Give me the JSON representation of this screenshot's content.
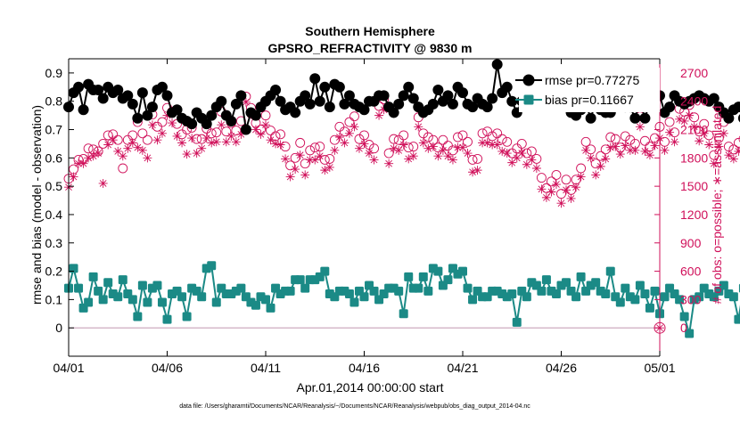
{
  "chart_data": {
    "type": "line",
    "title": "Southern Hemisphere",
    "subtitle": "GPSRO_REFRACTIVITY @ 9830 m",
    "xlabel": "Apr.01,2014 00:00:00 start",
    "ylabel": "rmse and bias (model - observation)",
    "y2label": "# of obs: o=possible; ∗=assimilated",
    "footnote": "data file: /Users/gharamti/Documents/NCAR/Reanalysis/~/Documents/NCAR/Reanalysis/webpub/obs_diag_output_2014-04.nc",
    "xlim": [
      0,
      30
    ],
    "ylim": [
      -0.1,
      0.95
    ],
    "y2lim": [
      -300,
      2850
    ],
    "x_ticks": [
      0,
      5,
      10,
      15,
      20,
      25,
      30
    ],
    "x_tick_labels": [
      "04/01",
      "04/06",
      "04/11",
      "04/16",
      "04/21",
      "04/26",
      "05/01"
    ],
    "y_ticks": [
      0,
      0.1,
      0.2,
      0.3,
      0.4,
      0.5,
      0.6,
      0.7,
      0.8,
      0.9
    ],
    "y_tick_labels": [
      "0",
      "0.1",
      "0.2",
      "0.3",
      "0.4",
      "0.5",
      "0.6",
      "0.7",
      "0.8",
      "0.9"
    ],
    "y2_ticks": [
      0,
      300,
      600,
      900,
      1200,
      1500,
      1800,
      2100,
      2400,
      2700
    ],
    "y2_tick_labels": [
      "0",
      "300",
      "600",
      "900",
      "1200",
      "1500",
      "1800",
      "2100",
      "2400",
      "2700"
    ],
    "legend": {
      "placement": "top-right",
      "entries": [
        "rmse pr=0.77275",
        "bias pr=0.11667"
      ]
    },
    "colors": {
      "rmse": "#000000",
      "bias": "#1b8a86",
      "obs": "#d0105a",
      "zero_line": "#c9a0b8"
    },
    "time_step_days": 0.25,
    "series": [
      {
        "name": "rmse",
        "axis": "left",
        "values": [
          0.78,
          0.83,
          0.85,
          0.77,
          0.86,
          0.84,
          0.84,
          0.81,
          0.85,
          0.83,
          0.84,
          0.81,
          0.82,
          0.79,
          0.74,
          0.83,
          0.75,
          0.78,
          0.84,
          0.85,
          0.82,
          0.76,
          0.77,
          0.74,
          0.73,
          0.72,
          0.76,
          0.74,
          0.72,
          0.75,
          0.78,
          0.8,
          0.75,
          0.73,
          0.79,
          0.82,
          0.7,
          0.76,
          0.75,
          0.78,
          0.8,
          0.82,
          0.84,
          0.8,
          0.77,
          0.78,
          0.76,
          0.8,
          0.82,
          0.79,
          0.88,
          0.8,
          0.85,
          0.78,
          0.86,
          0.85,
          0.79,
          0.82,
          0.79,
          0.78,
          0.77,
          0.8,
          0.8,
          0.82,
          0.82,
          0.78,
          0.76,
          0.79,
          0.82,
          0.85,
          0.81,
          0.78,
          0.76,
          0.77,
          0.79,
          0.84,
          0.8,
          0.82,
          0.79,
          0.85,
          0.83,
          0.79,
          0.78,
          0.81,
          0.79,
          0.78,
          0.81,
          0.93,
          0.83,
          0.85,
          0.8,
          0.76,
          0.8,
          0.79,
          0.87,
          0.82,
          0.85,
          0.79,
          0.85,
          0.83,
          0.85,
          0.79,
          0.76,
          0.75,
          0.77,
          0.79,
          0.74,
          0.8,
          0.77,
          0.76,
          0.76,
          0.8,
          0.82,
          0.78,
          0.78,
          0.74,
          0.8,
          0.74,
          0.8,
          0.79,
          0.82,
          0.76,
          0.78,
          0.82,
          0.8,
          0.79,
          0.8,
          0.81,
          0.82,
          0.81,
          0.8,
          0.81,
          0.78,
          0.76,
          0.74,
          0.77,
          0.78,
          0.74,
          0.79,
          0.74,
          0.78,
          0.76,
          0.82,
          0.81,
          0.82,
          0.78,
          0.75,
          0.73,
          0.66,
          0.7,
          0.75,
          0.68,
          0.72,
          0.74,
          0.73,
          0.73,
          0.69,
          0.74,
          0.72,
          0.74,
          0.77,
          0.82,
          0.74,
          0.78,
          0.77,
          0.82,
          0.75,
          0.78,
          0.8,
          0.78,
          0.74,
          0.72,
          0.76,
          0.72,
          0.78,
          0.79,
          0.74,
          0.7,
          0.73,
          0.72,
          0.65,
          0.71,
          0.69,
          0.68,
          0.69,
          0.63,
          0.75,
          0.72,
          0.71,
          0.7,
          0.69,
          0.7,
          0.72,
          0.75,
          0.77,
          0.74,
          0.8,
          0.74,
          0.72,
          0.74,
          0.72,
          0.71,
          0.82,
          0.74,
          0.68,
          0.7
        ]
      },
      {
        "name": "bias",
        "axis": "left",
        "values": [
          0.14,
          0.21,
          0.14,
          0.07,
          0.09,
          0.18,
          0.13,
          0.1,
          0.16,
          0.12,
          0.11,
          0.17,
          0.12,
          0.1,
          0.04,
          0.15,
          0.09,
          0.14,
          0.15,
          0.09,
          0.03,
          0.12,
          0.13,
          0.11,
          0.04,
          0.14,
          0.13,
          0.11,
          0.21,
          0.22,
          0.09,
          0.14,
          0.12,
          0.12,
          0.13,
          0.14,
          0.11,
          0.09,
          0.08,
          0.11,
          0.1,
          0.07,
          0.14,
          0.12,
          0.13,
          0.13,
          0.17,
          0.17,
          0.14,
          0.17,
          0.17,
          0.18,
          0.2,
          0.12,
          0.11,
          0.13,
          0.13,
          0.12,
          0.09,
          0.13,
          0.11,
          0.15,
          0.13,
          0.1,
          0.12,
          0.14,
          0.14,
          0.13,
          0.05,
          0.18,
          0.14,
          0.14,
          0.18,
          0.13,
          0.21,
          0.2,
          0.15,
          0.17,
          0.21,
          0.19,
          0.2,
          0.14,
          0.1,
          0.13,
          0.11,
          0.11,
          0.13,
          0.13,
          0.12,
          0.11,
          0.12,
          0.02,
          0.13,
          0.11,
          0.16,
          0.15,
          0.13,
          0.17,
          0.13,
          0.12,
          0.15,
          0.16,
          0.13,
          0.11,
          0.18,
          0.13,
          0.15,
          0.16,
          0.13,
          0.12,
          0.2,
          0.11,
          0.09,
          0.14,
          0.11,
          0.1,
          0.15,
          0.12,
          0.07,
          0.13,
          0.05,
          0.11,
          0.14,
          0.12,
          0.1,
          0.04,
          -0.02,
          0.1,
          0.11,
          0.14,
          0.12,
          0.11,
          0.13,
          0.15,
          0.12,
          0.11,
          0.03,
          0.14,
          0.12,
          0.1,
          0.13,
          0.16,
          0.14,
          0.11,
          0.07,
          0.15,
          0.13,
          0.1,
          0.06,
          0.09,
          0.13,
          0.1,
          0.12,
          0.17,
          0.15,
          0.12,
          0.1,
          0.09,
          0.16,
          0.09,
          0.11,
          0.12,
          0.1,
          0.12,
          0.07,
          0.12,
          0.1,
          0.09,
          0.08,
          0.12,
          0.12,
          0.14,
          0.13,
          0.14,
          0.1,
          0.13,
          0.15,
          0.1,
          0.07,
          0.11,
          0.04,
          0.16,
          0.17,
          0.11,
          0.08,
          0.13,
          0.09,
          0.01,
          0.05,
          0.14,
          0.11,
          0.17,
          0.13,
          0.09,
          0.12,
          0.05,
          0.1,
          0.16,
          0.12,
          0.07,
          0.1,
          0.14,
          0.13,
          0.15,
          0.13,
          0.09,
          0.04,
          0.12,
          0.12,
          0.24,
          0.1,
          0.14,
          0.07,
          0.12,
          0.09,
          0.05,
          0.06,
          0.13,
          0.08,
          0.17
        ]
      },
      {
        "name": "obs possible",
        "axis": "right",
        "marker": "circle",
        "values": [
          1580,
          1680,
          1780,
          1790,
          1900,
          1890,
          1870,
          1950,
          2040,
          2050,
          1990,
          1690,
          1990,
          2040,
          2180,
          2060,
          1990,
          2260,
          2130,
          2180,
          2330,
          2290,
          2160,
          2050,
          2100,
          2120,
          2000,
          2000,
          2110,
          2060,
          2070,
          2290,
          2080,
          2170,
          2090,
          2190,
          2450,
          2330,
          2170,
          2100,
          2250,
          2090,
          2030,
          2050,
          1920,
          1720,
          1800,
          1960,
          1740,
          1880,
          1910,
          1920,
          1780,
          1790,
          1990,
          2130,
          2080,
          2180,
          2240,
          2000,
          2040,
          1940,
          1900,
          2350,
          2420,
          1850,
          2000,
          1990,
          2040,
          1910,
          1920,
          2230,
          2060,
          2020,
          1990,
          1910,
          1990,
          1930,
          1880,
          2020,
          2040,
          1970,
          1780,
          1790,
          2060,
          2080,
          2030,
          2060,
          2000,
          1970,
          1850,
          1900,
          1950,
          1850,
          1870,
          1790,
          1590,
          1480,
          1550,
          1620,
          1420,
          1570,
          1460,
          1570,
          1690,
          1970,
          1890,
          1740,
          1820,
          1890,
          2020,
          2000,
          1910,
          2030,
          1990,
          1950,
          2240,
          1980,
          1920,
          2010,
          2130,
          1970,
          2180,
          2070,
          2320,
          2290,
          2360,
          2230,
          2080,
          2160,
          2040,
          1830,
          2010,
          2180,
          1920,
          1890,
          1960,
          2000,
          1890,
          2060,
          2100,
          1870,
          1870,
          2200,
          2010,
          2010,
          2120,
          2060,
          1790,
          1860,
          1930,
          2040,
          1950,
          2010,
          1940,
          2060,
          2110,
          2110,
          1900,
          1890,
          2190,
          2240,
          2180,
          2270,
          2270,
          2240,
          2180,
          2050,
          2140,
          2120,
          2280,
          2180,
          2210,
          2070,
          2040,
          2130,
          2050,
          2180,
          2060,
          2020,
          2090,
          2000,
          1960,
          2210,
          2280,
          2160,
          2250,
          2290,
          2000,
          2080,
          1870,
          1930,
          1940,
          2060,
          2150,
          2010,
          1960,
          2140,
          2150,
          2120,
          2210,
          2240,
          2050,
          2090,
          1890,
          1820,
          1920,
          1830,
          1940,
          1900,
          1860,
          1760,
          1930,
          1530,
          1390,
          1390,
          1460,
          1510,
          2030,
          2150,
          2180,
          2260
        ]
      },
      {
        "name": "obs assimilated",
        "axis": "right",
        "marker": "star",
        "values": [
          1490,
          1600,
          1740,
          1740,
          1800,
          1820,
          1850,
          1530,
          1940,
          1990,
          1870,
          1820,
          1900,
          1960,
          1910,
          1880,
          1800,
          2150,
          1990,
          2060,
          2250,
          2170,
          2030,
          1960,
          1840,
          2010,
          1850,
          1900,
          2010,
          1960,
          1970,
          2150,
          1970,
          2030,
          1970,
          2050,
          2390,
          2260,
          2100,
          2050,
          2150,
          1990,
          1950,
          1940,
          1790,
          1600,
          1680,
          1830,
          1620,
          1780,
          1780,
          1820,
          1670,
          1700,
          1880,
          2020,
          1960,
          2060,
          2130,
          1900,
          1950,
          1850,
          1780,
          2250,
          2310,
          1740,
          1900,
          1880,
          1940,
          1790,
          1820,
          2130,
          1960,
          1900,
          1920,
          1820,
          1880,
          1820,
          1780,
          1910,
          1910,
          1850,
          1650,
          1670,
          1960,
          1960,
          1940,
          1940,
          1870,
          1850,
          1750,
          1800,
          1850,
          1730,
          1780,
          1690,
          1470,
          1380,
          1440,
          1520,
          1320,
          1460,
          1370,
          1490,
          1600,
          1880,
          1800,
          1620,
          1710,
          1790,
          1910,
          1920,
          1840,
          1930,
          1880,
          1880,
          2130,
          1870,
          1830,
          1930,
          2010,
          1880,
          2070,
          1970,
          2210,
          2190,
          2250,
          2130,
          1980,
          2060,
          1940,
          1740,
          1920,
          2060,
          1830,
          1790,
          1870,
          1900,
          1780,
          1950,
          2000,
          1760,
          1780,
          2060,
          1900,
          1910,
          2010,
          1920,
          1650,
          1750,
          1840,
          1920,
          1840,
          1930,
          1870,
          1950,
          2020,
          1980,
          1800,
          1790,
          2060,
          2110,
          2060,
          2150,
          2130,
          2130,
          2070,
          1960,
          2040,
          2020,
          2180,
          2100,
          2120,
          1970,
          1940,
          2030,
          1950,
          2070,
          1960,
          1930,
          1990,
          1880,
          1820,
          2070,
          2170,
          2060,
          2100,
          2180,
          1900,
          1990,
          1770,
          1830,
          1820,
          1940,
          2030,
          1900,
          1820,
          2040,
          2060,
          2010,
          2100,
          2140,
          1950,
          1980,
          1760,
          1700,
          1800,
          1720,
          1810,
          1800,
          1770,
          1690,
          1830,
          1430,
          1300,
          1330,
          1380,
          1420,
          1940,
          2060,
          2080,
          2170
        ]
      }
    ]
  }
}
